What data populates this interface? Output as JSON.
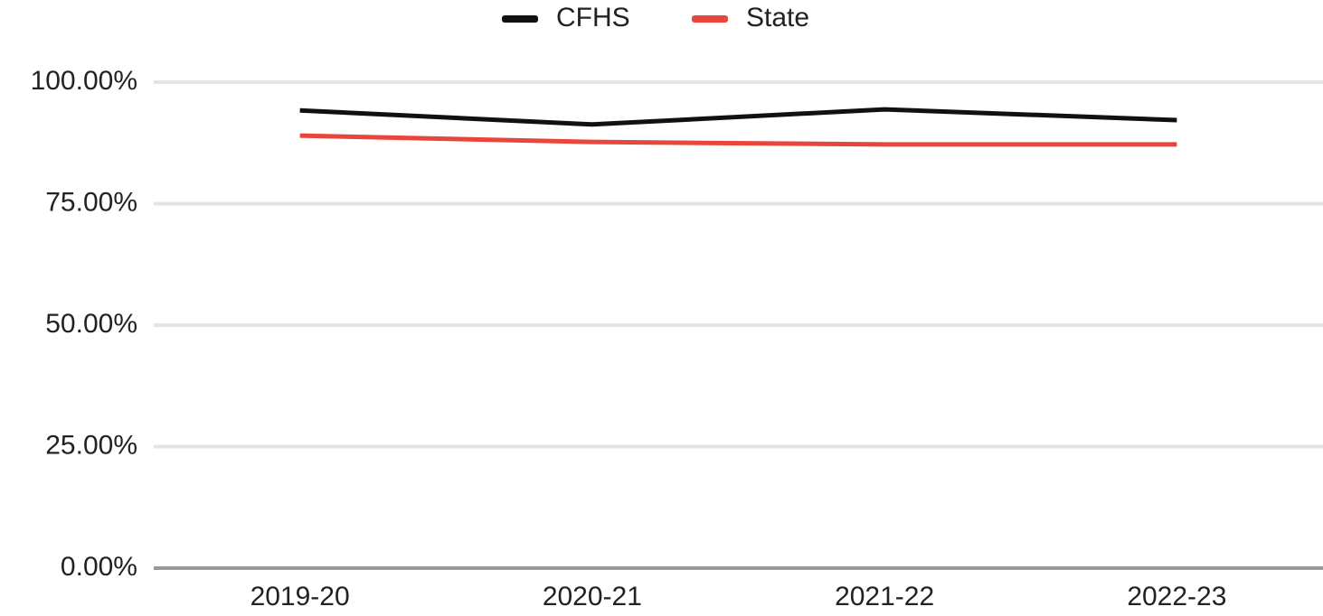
{
  "chart_data": {
    "type": "line",
    "categories": [
      "2019-20",
      "2020-21",
      "2021-22",
      "2022-23"
    ],
    "series": [
      {
        "name": "CFHS",
        "color": "#111111",
        "values": [
          94.2,
          91.3,
          94.4,
          92.2
        ]
      },
      {
        "name": "State",
        "color": "#e8453c",
        "values": [
          89.0,
          87.7,
          87.2,
          87.2
        ]
      }
    ],
    "ylim": [
      0,
      100
    ],
    "yticks": [
      {
        "value": 0,
        "label": "0.00%"
      },
      {
        "value": 25,
        "label": "25.00%"
      },
      {
        "value": 50,
        "label": "50.00%"
      },
      {
        "value": 75,
        "label": "75.00%"
      },
      {
        "value": 100,
        "label": "100.00%"
      }
    ],
    "grid": true,
    "legend": "top"
  }
}
